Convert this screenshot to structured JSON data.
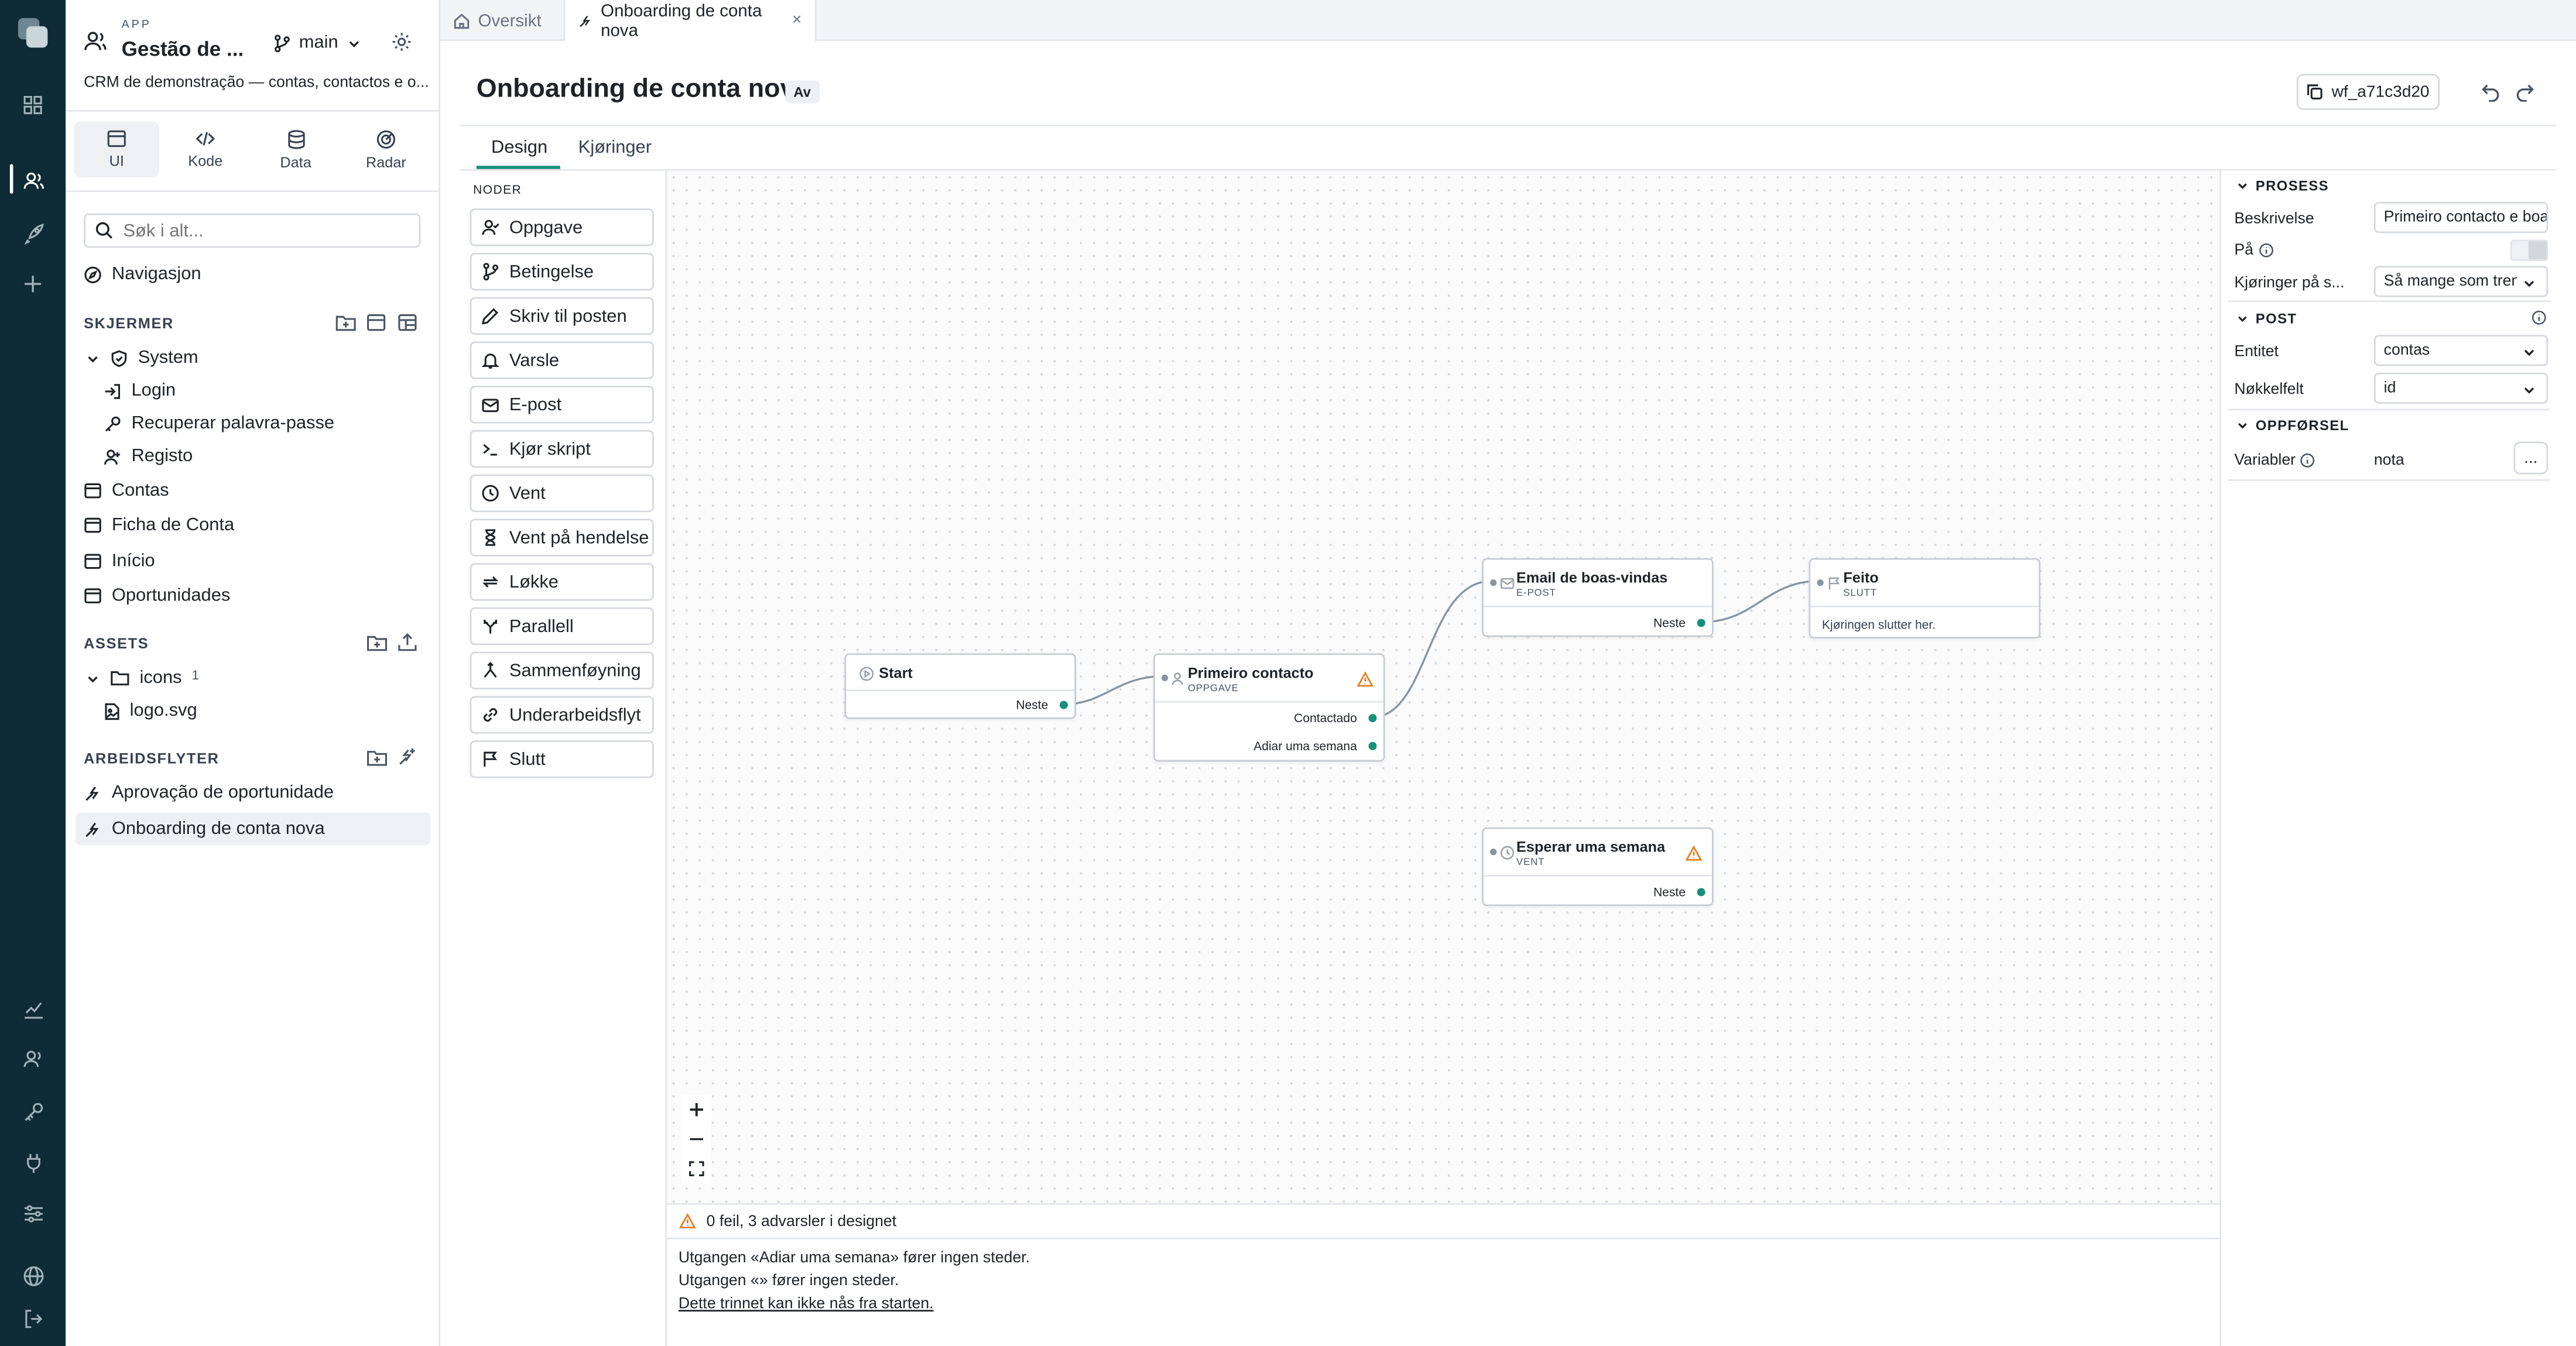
{
  "app": {
    "label": "APP",
    "name": "Gestão de ...",
    "branch": "main",
    "description": "CRM de demonstração — contas, contactos e o..."
  },
  "modes": [
    "UI",
    "Kode",
    "Data",
    "Radar"
  ],
  "search": {
    "placeholder": "Søk i alt..."
  },
  "nav_link": "Navigasjon",
  "screens": {
    "heading": "SKJERMER",
    "system_folder": "System",
    "system_children": [
      "Login",
      "Recuperar palavra-passe",
      "Registo"
    ],
    "items": [
      "Contas",
      "Ficha de Conta",
      "Início",
      "Oportunidades"
    ]
  },
  "assets": {
    "heading": "ASSETS",
    "folder": "icons",
    "folder_count": "1",
    "file": "logo.svg"
  },
  "workflows": {
    "heading": "ARBEIDSFLYTER",
    "items": [
      "Aprovação de oportunidade",
      "Onboarding de conta nova"
    ]
  },
  "tabs": {
    "overview": "Oversikt",
    "current": "Onboarding de conta nova",
    "close": "×"
  },
  "header": {
    "title": "Onboarding de conta nova",
    "badge": "Av",
    "workflow_id": "wf_a71c3d20"
  },
  "subtabs": [
    "Design",
    "Kjøringer"
  ],
  "palette": {
    "heading": "NODER",
    "items": [
      "Oppgave",
      "Betingelse",
      "Skriv til posten",
      "Varsle",
      "E-post",
      "Kjør skript",
      "Vent",
      "Vent på hendelse",
      "Løkke",
      "Parallell",
      "Sammenføyning",
      "Underarbeidsflyt",
      "Slutt"
    ]
  },
  "nodes": {
    "start": {
      "title": "Start",
      "out": "Neste"
    },
    "task": {
      "title": "Primeiro contacto",
      "type": "OPPGAVE",
      "outs": [
        "Contactado",
        "Adiar uma semana"
      ]
    },
    "email": {
      "title": "Email de boas-vindas",
      "type": "E-POST",
      "out": "Neste"
    },
    "end": {
      "title": "Feito",
      "type": "SLUTT",
      "body": "Kjøringen slutter her."
    },
    "wait": {
      "title": "Esperar uma semana",
      "type": "VENT",
      "out": "Neste"
    }
  },
  "issues": {
    "summary": "0 feil, 3 advarsler i designet",
    "lines": [
      "Utgangen «Adiar uma semana» fører ingen steder.",
      "Utgangen «» fører ingen steder.",
      "Dette trinnet kan ikke nås fra starten."
    ]
  },
  "props": {
    "process_heading": "PROSESS",
    "description_label": "Beskrivelse",
    "description_value": "Primeiro contacto e boa",
    "on_label": "På",
    "on_value": false,
    "runs_label": "Kjøringer på s...",
    "runs_value": "Så mange som trengs",
    "post_heading": "POST",
    "entity_label": "Entitet",
    "entity_value": "contas",
    "key_label": "Nøkkelfelt",
    "key_value": "id",
    "behavior_heading": "OPPFØRSEL",
    "variables_label": "Variabler",
    "variables_value": "nota",
    "more": "..."
  },
  "colors": {
    "rail": "#0f2b35",
    "accent": "#17907a",
    "warning": "#e67e22"
  }
}
